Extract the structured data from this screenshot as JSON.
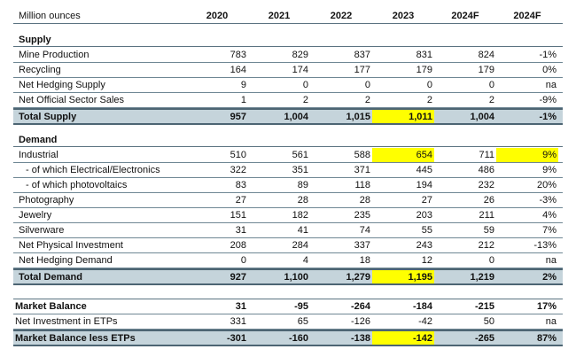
{
  "header": {
    "label": "Million ounces",
    "columns": [
      "2020",
      "2021",
      "2022",
      "2023",
      "2024F",
      "2024F"
    ]
  },
  "highlight_color": "#ffff00",
  "total_row_color": "#c5d4db",
  "supply": {
    "heading": "Supply",
    "rows": [
      {
        "label": "Mine Production",
        "values": [
          "783",
          "829",
          "837",
          "831",
          "824",
          "-1%"
        ]
      },
      {
        "label": "Recycling",
        "values": [
          "164",
          "174",
          "177",
          "179",
          "179",
          "0%"
        ]
      },
      {
        "label": "Net Hedging Supply",
        "values": [
          "9",
          "0",
          "0",
          "0",
          "0",
          "na"
        ]
      },
      {
        "label": "Net Official Sector Sales",
        "values": [
          "1",
          "2",
          "2",
          "2",
          "2",
          "-9%"
        ]
      }
    ],
    "total": {
      "label": "Total Supply",
      "values": [
        "957",
        "1,004",
        "1,015",
        "1,011",
        "1,004",
        "-1%"
      ]
    }
  },
  "demand": {
    "heading": "Demand",
    "rows": [
      {
        "label": "Industrial",
        "values": [
          "510",
          "561",
          "588",
          "654",
          "711",
          "9%"
        ]
      },
      {
        "label": "- of which Electrical/Electronics",
        "values": [
          "322",
          "351",
          "371",
          "445",
          "486",
          "9%"
        ]
      },
      {
        "label": "- of which photovoltaics",
        "values": [
          "83",
          "89",
          "118",
          "194",
          "232",
          "20%"
        ]
      },
      {
        "label": "Photography",
        "values": [
          "27",
          "28",
          "28",
          "27",
          "26",
          "-3%"
        ]
      },
      {
        "label": "Jewelry",
        "values": [
          "151",
          "182",
          "235",
          "203",
          "211",
          "4%"
        ]
      },
      {
        "label": "Silverware",
        "values": [
          "31",
          "41",
          "74",
          "55",
          "59",
          "7%"
        ]
      },
      {
        "label": "Net Physical Investment",
        "values": [
          "208",
          "284",
          "337",
          "243",
          "212",
          "-13%"
        ]
      },
      {
        "label": "Net Hedging Demand",
        "values": [
          "0",
          "4",
          "18",
          "12",
          "0",
          "na"
        ]
      }
    ],
    "total": {
      "label": "Total Demand",
      "values": [
        "927",
        "1,100",
        "1,279",
        "1,195",
        "1,219",
        "2%"
      ]
    }
  },
  "market": {
    "rows": [
      {
        "label": "Market Balance",
        "values": [
          "31",
          "-95",
          "-264",
          "-184",
          "-215",
          "17%"
        ]
      },
      {
        "label": "Net Investment in ETPs",
        "values": [
          "331",
          "65",
          "-126",
          "-42",
          "50",
          "na"
        ]
      }
    ],
    "total": {
      "label": "Market Balance less ETPs",
      "values": [
        "-301",
        "-160",
        "-138",
        "-142",
        "-265",
        "87%"
      ]
    }
  }
}
